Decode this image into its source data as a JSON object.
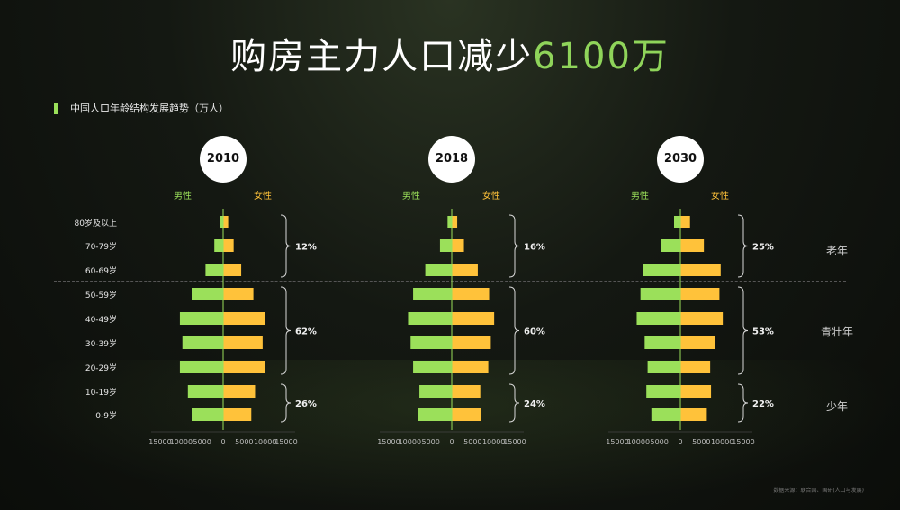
{
  "headline": {
    "main": "购房主力人口减少",
    "highlight": "6100万"
  },
  "subtitle": "中国人口年龄结构发展趋势（万人）",
  "source": "数据来源：联合国、国研(人口与发展)",
  "legend": {
    "male": "男性",
    "female": "女性"
  },
  "colors": {
    "male": "#9be05a",
    "female": "#ffc23a",
    "axis": "#9be05a"
  },
  "age_groups": [
    "80岁及以上",
    "70-79岁",
    "60-69岁",
    "50-59岁",
    "40-49岁",
    "30-39岁",
    "20-29岁",
    "10-19岁",
    "0-9岁"
  ],
  "group_labels": [
    "老年",
    "青壮年",
    "少年"
  ],
  "chart_data": {
    "type": "bar",
    "orientation": "horizontal-population-pyramid",
    "categories": [
      "80岁及以上",
      "70-79岁",
      "60-69岁",
      "50-59岁",
      "40-49岁",
      "30-39岁",
      "20-29岁",
      "10-19岁",
      "0-9岁"
    ],
    "xlim": [
      -15000,
      15000
    ],
    "ticks": [
      "15000",
      "10000",
      "5000",
      "0",
      "5000",
      "10000",
      "15000"
    ],
    "panels": [
      {
        "year": "2010",
        "series": [
          {
            "name": "男性",
            "values": [
              700,
              2100,
              4200,
              7500,
              10300,
              9700,
              10300,
              8400,
              7500
            ]
          },
          {
            "name": "女性",
            "values": [
              1200,
              2500,
              4300,
              7200,
              9900,
              9400,
              9900,
              7600,
              6700
            ]
          }
        ],
        "percentages": [
          "12%",
          "62%",
          "26%"
        ]
      },
      {
        "year": "2018",
        "series": [
          {
            "name": "男性",
            "values": [
              1000,
              2800,
              6300,
              9200,
              10400,
              9800,
              9200,
              7700,
              8100
            ]
          },
          {
            "name": "女性",
            "values": [
              1300,
              2900,
              6200,
              8900,
              10100,
              9300,
              8700,
              6800,
              7000
            ]
          }
        ],
        "percentages": [
          "16%",
          "24%",
          "60%"
        ]
      },
      {
        "year": "2030",
        "series": [
          {
            "name": "男性",
            "values": [
              1500,
              4600,
              8800,
              9500,
              10400,
              8500,
              7800,
              8100,
              6900
            ]
          },
          {
            "name": "女性",
            "values": [
              2300,
              5600,
              9600,
              9300,
              10100,
              8200,
              7100,
              7300,
              6300
            ]
          }
        ],
        "percentages": [
          "25%",
          "53%",
          "22%"
        ]
      }
    ]
  }
}
